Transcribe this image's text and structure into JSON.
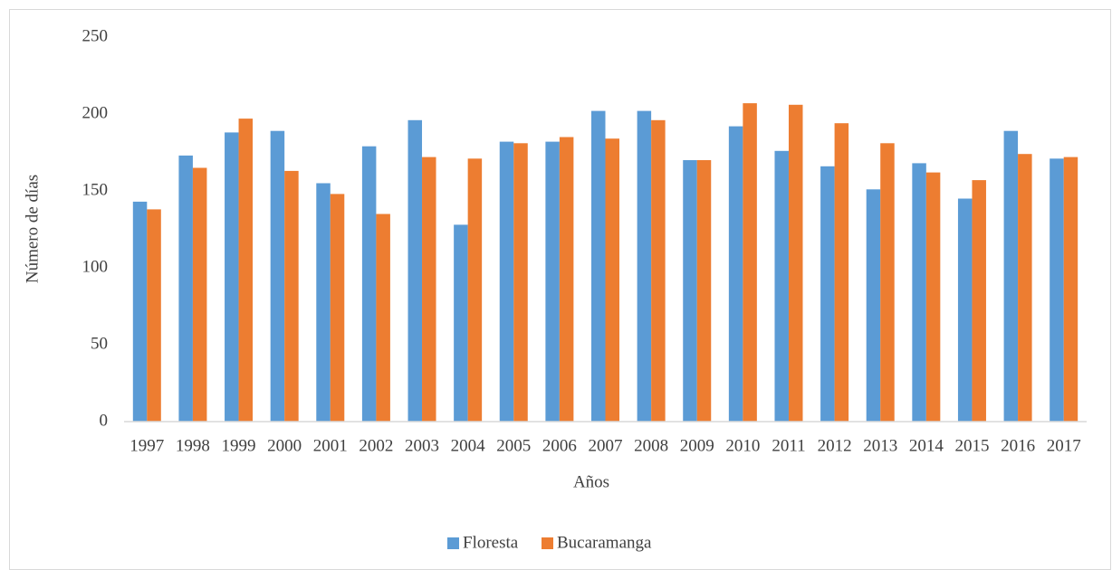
{
  "chart_data": {
    "type": "bar",
    "x_label": "Años",
    "y_label": "Número de días",
    "categories": [
      "1997",
      "1998",
      "1999",
      "2000",
      "2001",
      "2002",
      "2003",
      "2004",
      "2005",
      "2006",
      "2007",
      "2008",
      "2009",
      "2010",
      "2011",
      "2012",
      "2013",
      "2014",
      "2015",
      "2016",
      "2017"
    ],
    "series": [
      {
        "name": "Floresta",
        "color": "#5b9bd5",
        "values": [
          143,
          173,
          188,
          189,
          155,
          179,
          196,
          128,
          182,
          182,
          202,
          202,
          170,
          192,
          176,
          166,
          151,
          168,
          145,
          189,
          171
        ]
      },
      {
        "name": "Bucaramanga",
        "color": "#ed7d31",
        "values": [
          138,
          165,
          197,
          163,
          148,
          135,
          172,
          171,
          181,
          185,
          184,
          196,
          170,
          207,
          206,
          194,
          181,
          162,
          157,
          174,
          172
        ]
      }
    ],
    "ylim": [
      0,
      250
    ],
    "yticks": [
      0,
      50,
      100,
      150,
      200,
      250
    ],
    "grid": false,
    "legend": "bottom"
  }
}
